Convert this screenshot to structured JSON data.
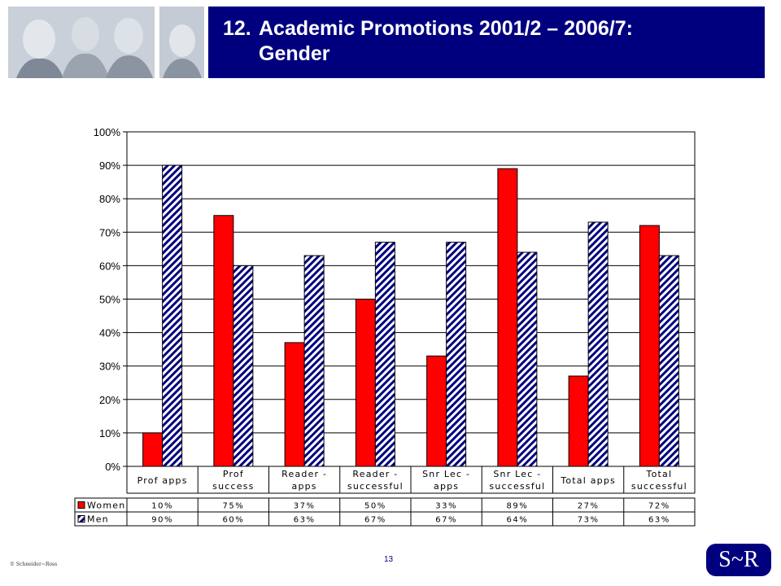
{
  "header": {
    "number": "12.",
    "title_line1": "Academic Promotions 2001/2 – 2006/7:",
    "title_line2": "Gender"
  },
  "chart_data": {
    "type": "bar",
    "categories": [
      [
        "Prof apps"
      ],
      [
        "Prof",
        "success"
      ],
      [
        "Reader -",
        "apps"
      ],
      [
        "Reader -",
        "successful"
      ],
      [
        "Snr Lec -",
        "apps"
      ],
      [
        "Snr Lec -",
        "successful"
      ],
      [
        "Total apps"
      ],
      [
        "Total",
        "successful"
      ]
    ],
    "series": [
      {
        "name": "Women",
        "color": "#ff0000",
        "pattern": "solid",
        "values": [
          10,
          75,
          37,
          50,
          33,
          89,
          27,
          72
        ],
        "labels": [
          "10%",
          "75%",
          "37%",
          "50%",
          "33%",
          "89%",
          "27%",
          "72%"
        ]
      },
      {
        "name": "Men",
        "color": "#00007f",
        "pattern": "hatched",
        "values": [
          90,
          60,
          63,
          67,
          67,
          64,
          73,
          63
        ],
        "labels": [
          "90%",
          "60%",
          "63%",
          "67%",
          "67%",
          "64%",
          "73%",
          "63%"
        ]
      }
    ],
    "ylim": [
      0,
      100
    ],
    "yticks": [
      "0%",
      "10%",
      "20%",
      "30%",
      "40%",
      "50%",
      "60%",
      "70%",
      "80%",
      "90%",
      "100%"
    ],
    "grid": true,
    "legend": "data-table"
  },
  "footer": {
    "copyright": "© Schneider~Ross",
    "page": "13",
    "logo": "S~R"
  }
}
